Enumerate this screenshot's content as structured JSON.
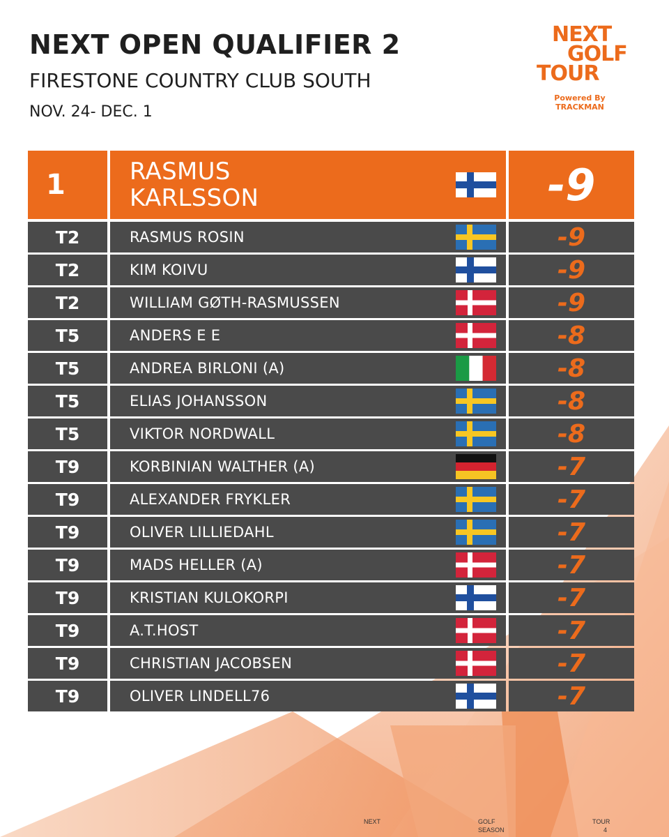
{
  "header": {
    "title": "NEXT OPEN QUALIFIER 2",
    "subtitle": "FIRESTONE COUNTRY CLUB SOUTH",
    "dates": "NOV. 24- DEC. 1"
  },
  "logo": {
    "line1": "NEXT",
    "line2": "GOLF",
    "line3": "TOUR",
    "powered1": "Powered By",
    "powered2": "TRACKMAN",
    "color": "#ec6b1c"
  },
  "leaderboard": [
    {
      "pos": "1",
      "name": "RASMUS KARLSSON",
      "name_line1": "RASMUS",
      "name_line2": "KARLSSON",
      "flag": "finland",
      "score": "-9"
    },
    {
      "pos": "T2",
      "name": "RASMUS ROSIN",
      "flag": "sweden",
      "score": "-9"
    },
    {
      "pos": "T2",
      "name": "KIM KOIVU",
      "flag": "finland",
      "score": "-9"
    },
    {
      "pos": "T2",
      "name": "WILLIAM GØTH-RASMUSSEN",
      "flag": "denmark",
      "score": "-9"
    },
    {
      "pos": "T5",
      "name": "ANDERS E E",
      "flag": "denmark",
      "score": "-8"
    },
    {
      "pos": "T5",
      "name": "ANDREA BIRLONI (A)",
      "flag": "italy",
      "score": "-8"
    },
    {
      "pos": "T5",
      "name": "ELIAS JOHANSSON",
      "flag": "sweden",
      "score": "-8"
    },
    {
      "pos": "T5",
      "name": "VIKTOR NORDWALL",
      "flag": "sweden",
      "score": "-8"
    },
    {
      "pos": "T9",
      "name": "KORBINIAN WALTHER (A)",
      "flag": "germany",
      "score": "-7"
    },
    {
      "pos": "T9",
      "name": "ALEXANDER FRYKLER",
      "flag": "sweden",
      "score": "-7"
    },
    {
      "pos": "T9",
      "name": "OLIVER LILLIEDAHL",
      "flag": "sweden",
      "score": "-7"
    },
    {
      "pos": "T9",
      "name": "MADS HELLER (A)",
      "flag": "denmark",
      "score": "-7"
    },
    {
      "pos": "T9",
      "name": "KRISTIAN KULOKORPI",
      "flag": "finland",
      "score": "-7"
    },
    {
      "pos": "T9",
      "name": "A.T.HOST",
      "flag": "denmark",
      "score": "-7"
    },
    {
      "pos": "T9",
      "name": "CHRISTIAN JACOBSEN",
      "flag": "denmark",
      "score": "-7"
    },
    {
      "pos": "T9",
      "name": "OLIVER LINDELL76",
      "flag": "finland",
      "score": "-7"
    }
  ],
  "footer": {
    "w1": "NEXT",
    "w2": "GOLF",
    "w3": "SEASON",
    "w4": "TOUR",
    "w5": "4"
  },
  "colors": {
    "accent": "#ec6b1c",
    "row_bg": "#4a4a4a",
    "text_dark": "#1f1f1f"
  }
}
